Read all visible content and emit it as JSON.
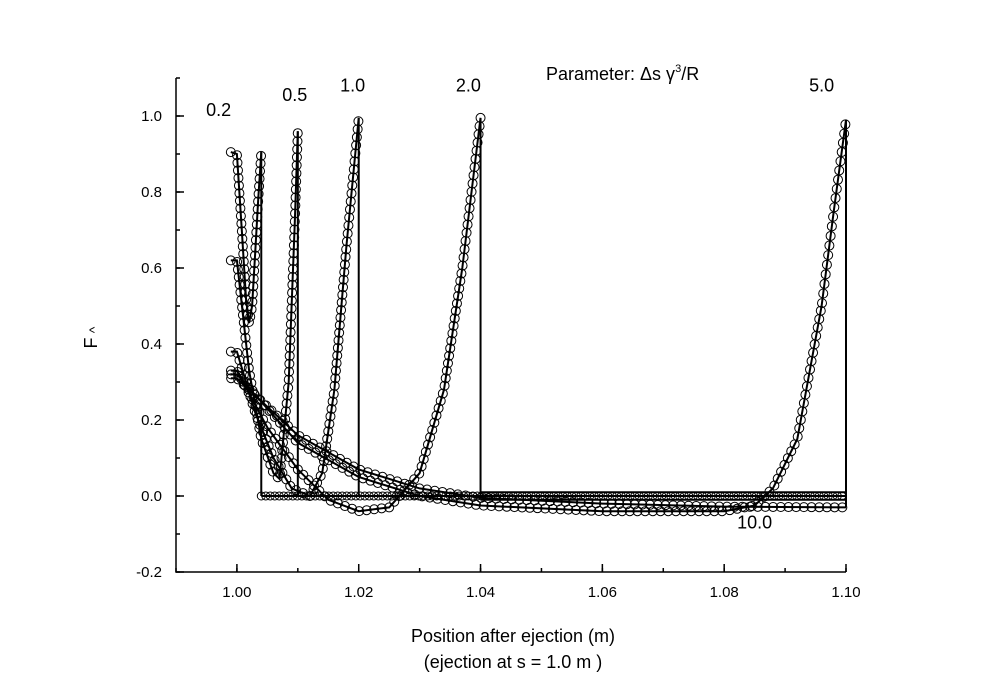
{
  "chart_data": {
    "type": "line",
    "title": "Parameter: Δs γ³/R",
    "title_parts": {
      "main": "Parameter: Δs γ",
      "superscript": "3",
      "suffix": "/R"
    },
    "xlabel": "Position after ejection (m)",
    "xlabel_line2": "(ejection at s = 1.0 m )",
    "ylabel": "F",
    "ylabel_hat": "^",
    "xlim": [
      0.99,
      1.1
    ],
    "ylim": [
      -0.2,
      1.1
    ],
    "xticks": [
      1.0,
      1.02,
      1.04,
      1.06,
      1.08,
      1.1
    ],
    "xtick_labels": [
      "1.00",
      "1.02",
      "1.04",
      "1.06",
      "1.08",
      "1.10"
    ],
    "yticks": [
      -0.2,
      0.0,
      0.2,
      0.4,
      0.6,
      0.8,
      1.0
    ],
    "ytick_labels": [
      "-0.2",
      "0.0",
      "0.2",
      "0.4",
      "0.6",
      "0.8",
      "1.0"
    ],
    "legend": "none",
    "series": [
      {
        "name": "0.2",
        "end_x": 1.004,
        "start_y": 0.905,
        "end_y": 0.905,
        "points": [
          [
            0.999,
            0.905
          ],
          [
            1.0,
            0.9
          ],
          [
            1.0008,
            0.7
          ],
          [
            1.0015,
            0.52
          ],
          [
            1.002,
            0.455
          ],
          [
            1.0025,
            0.5
          ],
          [
            1.003,
            0.64
          ],
          [
            1.0035,
            0.78
          ],
          [
            1.004,
            0.905
          ]
        ]
      },
      {
        "name": "0.5",
        "end_x": 1.01,
        "start_y": 0.62,
        "end_y": 0.96,
        "points": [
          [
            0.999,
            0.62
          ],
          [
            1.0,
            0.62
          ],
          [
            1.002,
            0.33
          ],
          [
            1.004,
            0.15
          ],
          [
            1.006,
            0.06
          ],
          [
            1.007,
            0.045
          ],
          [
            1.0085,
            0.3
          ],
          [
            1.0095,
            0.72
          ],
          [
            1.01,
            0.96
          ]
        ]
      },
      {
        "name": "1.0",
        "end_x": 1.02,
        "start_y": 0.38,
        "end_y": 0.995,
        "points": [
          [
            0.999,
            0.38
          ],
          [
            1.0,
            0.38
          ],
          [
            1.003,
            0.22
          ],
          [
            1.006,
            0.1
          ],
          [
            1.009,
            0.02
          ],
          [
            1.012,
            0.0
          ],
          [
            1.014,
            0.06
          ],
          [
            1.016,
            0.28
          ],
          [
            1.018,
            0.66
          ],
          [
            1.02,
            0.995
          ]
        ]
      },
      {
        "name": "2.0",
        "end_x": 1.04,
        "start_y": 0.33,
        "end_y": 0.995,
        "points": [
          [
            0.999,
            0.33
          ],
          [
            1.0,
            0.33
          ],
          [
            1.005,
            0.18
          ],
          [
            1.01,
            0.07
          ],
          [
            1.015,
            -0.01
          ],
          [
            1.02,
            -0.04
          ],
          [
            1.025,
            -0.03
          ],
          [
            1.03,
            0.06
          ],
          [
            1.034,
            0.28
          ],
          [
            1.037,
            0.6
          ],
          [
            1.04,
            0.995
          ]
        ]
      },
      {
        "name": "5.0",
        "end_x": 1.1,
        "start_y": 0.32,
        "end_y": 0.99,
        "points": [
          [
            0.999,
            0.32
          ],
          [
            1.0,
            0.32
          ],
          [
            1.01,
            0.14
          ],
          [
            1.02,
            0.05
          ],
          [
            1.03,
            0.0
          ],
          [
            1.04,
            -0.025
          ],
          [
            1.06,
            -0.04
          ],
          [
            1.08,
            -0.04
          ],
          [
            1.085,
            -0.025
          ],
          [
            1.088,
            0.02
          ],
          [
            1.092,
            0.15
          ],
          [
            1.096,
            0.5
          ],
          [
            1.098,
            0.75
          ],
          [
            1.1,
            0.99
          ]
        ]
      },
      {
        "name": "10.0",
        "end_x": 1.1,
        "start_y": 0.31,
        "end_y": -0.03,
        "points": [
          [
            0.999,
            0.31
          ],
          [
            1.0,
            0.31
          ],
          [
            1.01,
            0.16
          ],
          [
            1.02,
            0.07
          ],
          [
            1.03,
            0.02
          ],
          [
            1.04,
            -0.005
          ],
          [
            1.06,
            -0.02
          ],
          [
            1.08,
            -0.028
          ],
          [
            1.1,
            -0.03
          ]
        ]
      }
    ],
    "flat_baseline": {
      "from_x": 1.004,
      "to_x": 1.1,
      "y": 0.0
    },
    "extra_flat": [
      {
        "to_x": 1.1,
        "y": -0.01
      },
      {
        "to_x": 1.1,
        "y": 0.01
      }
    ],
    "annotations": [
      {
        "text": "0.2",
        "x": 0.997,
        "y": 1.0
      },
      {
        "text": "0.5",
        "x": 1.0095,
        "y": 1.04
      },
      {
        "text": "1.0",
        "x": 1.019,
        "y": 1.065
      },
      {
        "text": "2.0",
        "x": 1.038,
        "y": 1.065
      },
      {
        "text": "5.0",
        "x": 1.096,
        "y": 1.065
      },
      {
        "text": "10.0",
        "x": 1.085,
        "y": -0.085
      }
    ]
  }
}
